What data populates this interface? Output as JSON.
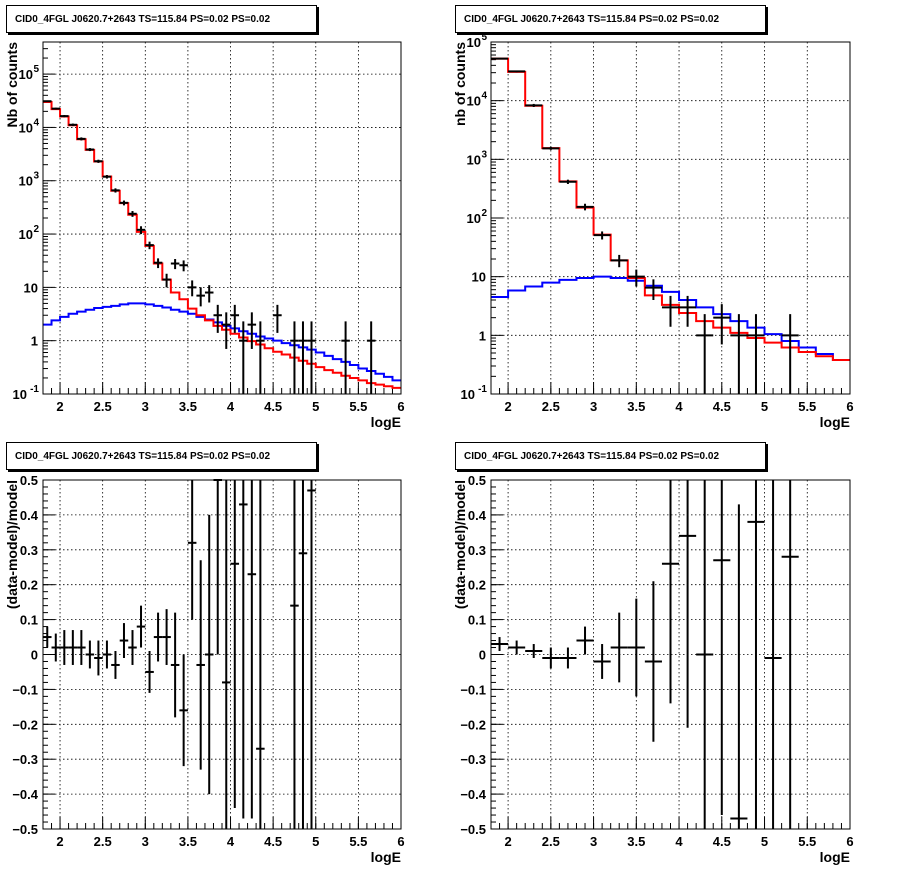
{
  "colors": {
    "data": "#000000",
    "total_model": "#ff0000",
    "source_model": "#0000ff",
    "grid": "#000000"
  },
  "chart_data": [
    {
      "id": "p1",
      "type": "histogram",
      "title": "CID0_4FGL J0620.7+2643 TS=115.84 PS=0.02 PS=0.02",
      "xlabel": "logE",
      "ylabel": "Nb of counts",
      "log_y": true,
      "grid": true,
      "xlim": [
        1.8,
        6.0
      ],
      "ylim": [
        0.1,
        400000
      ],
      "x_ticks": [
        2,
        2.5,
        3,
        3.5,
        4,
        4.5,
        5,
        5.5,
        6
      ],
      "x_tick_labels": [
        "2",
        "2.5",
        "3",
        "3.5",
        "4",
        "4.5",
        "5",
        "5.5",
        "6"
      ],
      "y_ticks": [
        0.1,
        1,
        10,
        100,
        1000,
        10000,
        100000
      ],
      "y_tick_labels": [
        [
          "10",
          "-1"
        ],
        [
          "1",
          ""
        ],
        [
          "10",
          ""
        ],
        [
          "10",
          "2"
        ],
        [
          "10",
          "3"
        ],
        [
          "10",
          "4"
        ],
        [
          "10",
          "5"
        ]
      ],
      "total_model": {
        "bin_edges": [
          1.8,
          1.9,
          2.0,
          2.1,
          2.2,
          2.3,
          2.4,
          2.5,
          2.6,
          2.7,
          2.8,
          2.9,
          3.0,
          3.1,
          3.2,
          3.3,
          3.4,
          3.5,
          3.6,
          3.7,
          3.8,
          3.9,
          4.0,
          4.1,
          4.2,
          4.3,
          4.4,
          4.5,
          4.6,
          4.7,
          4.8,
          4.9,
          5.0,
          5.1,
          5.2,
          5.3,
          5.4,
          5.5,
          5.6,
          5.7,
          5.8,
          5.9,
          6.0
        ],
        "values": [
          30000,
          22000,
          16000,
          11000,
          6000,
          3800,
          2300,
          1200,
          650,
          380,
          230,
          110,
          60,
          28,
          14,
          8.0,
          6.0,
          4.0,
          3.0,
          2.4,
          1.9,
          1.6,
          1.35,
          1.15,
          0.98,
          0.85,
          0.72,
          0.62,
          0.55,
          0.48,
          0.42,
          0.37,
          0.32,
          0.28,
          0.25,
          0.22,
          0.2,
          0.18,
          0.16,
          0.15,
          0.14,
          0.13
        ]
      },
      "source_model": {
        "bin_edges": [
          1.8,
          1.9,
          2.0,
          2.1,
          2.2,
          2.3,
          2.4,
          2.5,
          2.6,
          2.7,
          2.8,
          2.9,
          3.0,
          3.1,
          3.2,
          3.3,
          3.4,
          3.5,
          3.6,
          3.7,
          3.8,
          3.9,
          4.0,
          4.1,
          4.2,
          4.3,
          4.4,
          4.5,
          4.6,
          4.7,
          4.8,
          4.9,
          5.0,
          5.1,
          5.2,
          5.3,
          5.4,
          5.5,
          5.6,
          5.7,
          5.8,
          5.9,
          6.0
        ],
        "values": [
          2.0,
          2.4,
          2.8,
          3.2,
          3.5,
          3.8,
          4.1,
          4.3,
          4.5,
          4.8,
          5.0,
          5.0,
          4.8,
          4.5,
          4.2,
          3.8,
          3.5,
          3.2,
          2.8,
          2.5,
          2.2,
          1.9,
          1.7,
          1.5,
          1.35,
          1.2,
          1.1,
          1.0,
          0.9,
          0.82,
          0.75,
          0.68,
          0.6,
          0.52,
          0.45,
          0.4,
          0.35,
          0.3,
          0.27,
          0.24,
          0.21,
          0.18
        ]
      },
      "data_points": [
        {
          "x": 1.85,
          "y": 31000,
          "ylo": 30000,
          "yhi": 32000
        },
        {
          "x": 1.95,
          "y": 22500,
          "ylo": 21600,
          "yhi": 23400
        },
        {
          "x": 2.05,
          "y": 16300,
          "ylo": 15500,
          "yhi": 17100
        },
        {
          "x": 2.15,
          "y": 11200,
          "ylo": 10600,
          "yhi": 11800
        },
        {
          "x": 2.25,
          "y": 6100,
          "ylo": 5700,
          "yhi": 6500
        },
        {
          "x": 2.35,
          "y": 3850,
          "ylo": 3600,
          "yhi": 4100
        },
        {
          "x": 2.45,
          "y": 2320,
          "ylo": 2160,
          "yhi": 2480
        },
        {
          "x": 2.55,
          "y": 1190,
          "ylo": 1100,
          "yhi": 1280
        },
        {
          "x": 2.65,
          "y": 660,
          "ylo": 600,
          "yhi": 720
        },
        {
          "x": 2.75,
          "y": 385,
          "ylo": 345,
          "yhi": 425
        },
        {
          "x": 2.85,
          "y": 240,
          "ylo": 210,
          "yhi": 270
        },
        {
          "x": 2.95,
          "y": 120,
          "ylo": 100,
          "yhi": 140
        },
        {
          "x": 3.05,
          "y": 62,
          "ylo": 52,
          "yhi": 72
        },
        {
          "x": 3.15,
          "y": 29,
          "ylo": 23,
          "yhi": 35
        },
        {
          "x": 3.25,
          "y": 14,
          "ylo": 10,
          "yhi": 18
        },
        {
          "x": 3.35,
          "y": 28,
          "ylo": 22,
          "yhi": 34
        },
        {
          "x": 3.45,
          "y": 26,
          "ylo": 20,
          "yhi": 32
        },
        {
          "x": 3.55,
          "y": 10,
          "ylo": 6.8,
          "yhi": 13.5
        },
        {
          "x": 3.65,
          "y": 7.0,
          "ylo": 4.4,
          "yhi": 10
        },
        {
          "x": 3.75,
          "y": 8.0,
          "ylo": 5.2,
          "yhi": 11
        },
        {
          "x": 3.85,
          "y": 3.0,
          "ylo": 1.4,
          "yhi": 4.7
        },
        {
          "x": 3.95,
          "y": 2.0,
          "ylo": 0.7,
          "yhi": 3.4
        },
        {
          "x": 4.05,
          "y": 3.0,
          "ylo": 1.4,
          "yhi": 4.7
        },
        {
          "x": 4.15,
          "y": 1.0,
          "ylo": 0.1,
          "yhi": 2.3
        },
        {
          "x": 4.25,
          "y": 2.0,
          "ylo": 0.7,
          "yhi": 3.4
        },
        {
          "x": 4.35,
          "y": 1.0,
          "ylo": 0.1,
          "yhi": 2.3
        },
        {
          "x": 4.55,
          "y": 3.0,
          "ylo": 1.4,
          "yhi": 4.7
        },
        {
          "x": 4.75,
          "y": 1.0,
          "ylo": 0.1,
          "yhi": 2.3
        },
        {
          "x": 4.85,
          "y": 1.0,
          "ylo": 0.1,
          "yhi": 2.3
        },
        {
          "x": 4.95,
          "y": 1.0,
          "ylo": 0.1,
          "yhi": 2.3
        },
        {
          "x": 5.35,
          "y": 1.0,
          "ylo": 0.1,
          "yhi": 2.3
        },
        {
          "x": 5.65,
          "y": 1.0,
          "ylo": 0.1,
          "yhi": 2.3
        }
      ]
    },
    {
      "id": "p2",
      "type": "histogram",
      "title": "CID0_4FGL J0620.7+2643 TS=115.84 PS=0.02 PS=0.02",
      "xlabel": "logE",
      "ylabel": "nb of counts",
      "log_y": true,
      "grid": true,
      "xlim": [
        1.8,
        6.0
      ],
      "ylim": [
        0.1,
        100000
      ],
      "x_ticks": [
        2,
        2.5,
        3,
        3.5,
        4,
        4.5,
        5,
        5.5,
        6
      ],
      "x_tick_labels": [
        "2",
        "2.5",
        "3",
        "3.5",
        "4",
        "4.5",
        "5",
        "5.5",
        "6"
      ],
      "y_ticks": [
        0.1,
        1,
        10,
        100,
        1000,
        10000,
        100000
      ],
      "y_tick_labels": [
        [
          "10",
          "-1"
        ],
        [
          "1",
          ""
        ],
        [
          "10",
          ""
        ],
        [
          "10",
          "2"
        ],
        [
          "10",
          "3"
        ],
        [
          "10",
          "4"
        ],
        [
          "10",
          "5"
        ]
      ],
      "total_model": {
        "bin_edges": [
          1.8,
          2.0,
          2.2,
          2.4,
          2.6,
          2.8,
          3.0,
          3.2,
          3.4,
          3.6,
          3.8,
          4.0,
          4.2,
          4.4,
          4.6,
          4.8,
          5.0,
          5.2,
          5.4,
          5.6,
          5.8,
          6.0
        ],
        "values": [
          52000,
          31000,
          8200,
          1550,
          420,
          150,
          52,
          19,
          9.5,
          4.8,
          3.3,
          2.4,
          1.75,
          1.35,
          1.1,
          0.9,
          0.75,
          0.62,
          0.52,
          0.44,
          0.38
        ]
      },
      "source_model": {
        "bin_edges": [
          1.8,
          2.0,
          2.2,
          2.4,
          2.6,
          2.8,
          3.0,
          3.2,
          3.4,
          3.6,
          3.8,
          4.0,
          4.2,
          4.4,
          4.6,
          4.8,
          5.0,
          5.2,
          5.4,
          5.6,
          5.8,
          6.0
        ],
        "values": [
          4.5,
          5.8,
          6.8,
          7.9,
          8.8,
          9.5,
          10.0,
          9.5,
          8.5,
          7.0,
          5.5,
          4.0,
          3.0,
          2.3,
          1.75,
          1.35,
          1.05,
          0.8,
          0.62,
          0.48,
          0.38
        ]
      },
      "data_points": [
        {
          "x": 1.9,
          "y": 52000,
          "ylo": 50500,
          "yhi": 53500
        },
        {
          "x": 2.1,
          "y": 31500,
          "ylo": 30400,
          "yhi": 32600
        },
        {
          "x": 2.3,
          "y": 8300,
          "ylo": 7800,
          "yhi": 8800
        },
        {
          "x": 2.5,
          "y": 1540,
          "ylo": 1450,
          "yhi": 1630
        },
        {
          "x": 2.7,
          "y": 415,
          "ylo": 380,
          "yhi": 450
        },
        {
          "x": 2.9,
          "y": 155,
          "ylo": 135,
          "yhi": 175
        },
        {
          "x": 3.1,
          "y": 51,
          "ylo": 43,
          "yhi": 59
        },
        {
          "x": 3.3,
          "y": 19,
          "ylo": 14.5,
          "yhi": 23.5
        },
        {
          "x": 3.5,
          "y": 10,
          "ylo": 6.8,
          "yhi": 13.2
        },
        {
          "x": 3.7,
          "y": 6.5,
          "ylo": 4.0,
          "yhi": 9.0
        },
        {
          "x": 3.9,
          "y": 3.0,
          "ylo": 1.4,
          "yhi": 4.7
        },
        {
          "x": 4.1,
          "y": 3.0,
          "ylo": 1.4,
          "yhi": 4.7
        },
        {
          "x": 4.3,
          "y": 1.0,
          "ylo": 0.1,
          "yhi": 2.3
        },
        {
          "x": 4.5,
          "y": 2.0,
          "ylo": 0.7,
          "yhi": 3.4
        },
        {
          "x": 4.7,
          "y": 1.0,
          "ylo": 0.1,
          "yhi": 2.3
        },
        {
          "x": 4.9,
          "y": 1.0,
          "ylo": 0.1,
          "yhi": 2.3
        },
        {
          "x": 5.3,
          "y": 1.0,
          "ylo": 0.1,
          "yhi": 2.3
        }
      ]
    },
    {
      "id": "p3",
      "type": "scatter",
      "title": "CID0_4FGL J0620.7+2643 TS=115.84 PS=0.02 PS=0.02",
      "xlabel": "logE",
      "ylabel": "(data-model)/model",
      "log_y": false,
      "grid": true,
      "xlim": [
        1.8,
        6.0
      ],
      "ylim": [
        -0.5,
        0.5
      ],
      "x_ticks": [
        2,
        2.5,
        3,
        3.5,
        4,
        4.5,
        5,
        5.5,
        6
      ],
      "x_tick_labels": [
        "2",
        "2.5",
        "3",
        "3.5",
        "4",
        "4.5",
        "5",
        "5.5",
        "6"
      ],
      "y_ticks": [
        -0.5,
        -0.4,
        -0.3,
        -0.2,
        -0.1,
        0,
        0.1,
        0.2,
        0.3,
        0.4,
        0.5
      ],
      "y_tick_labels": [
        [
          "−0.5",
          ""
        ],
        [
          "−0.4",
          ""
        ],
        [
          "−0.3",
          ""
        ],
        [
          "−0.2",
          ""
        ],
        [
          "−0.1",
          ""
        ],
        [
          "0",
          ""
        ],
        [
          "0.1",
          ""
        ],
        [
          "0.2",
          ""
        ],
        [
          "0.3",
          ""
        ],
        [
          "0.4",
          ""
        ],
        [
          "0.5",
          ""
        ]
      ],
      "points": [
        {
          "x": 1.85,
          "y": 0.05,
          "err": 0.03
        },
        {
          "x": 1.95,
          "y": 0.02,
          "err": 0.04
        },
        {
          "x": 2.05,
          "y": 0.02,
          "err": 0.05
        },
        {
          "x": 2.15,
          "y": 0.02,
          "err": 0.05
        },
        {
          "x": 2.25,
          "y": 0.02,
          "err": 0.05
        },
        {
          "x": 2.35,
          "y": 0.0,
          "err": 0.04
        },
        {
          "x": 2.45,
          "y": -0.01,
          "err": 0.05
        },
        {
          "x": 2.55,
          "y": 0.0,
          "err": 0.04
        },
        {
          "x": 2.65,
          "y": -0.03,
          "err": 0.04
        },
        {
          "x": 2.75,
          "y": 0.04,
          "err": 0.05
        },
        {
          "x": 2.85,
          "y": 0.02,
          "err": 0.05
        },
        {
          "x": 2.95,
          "y": 0.08,
          "err": 0.06
        },
        {
          "x": 3.05,
          "y": -0.05,
          "err": 0.06
        },
        {
          "x": 3.15,
          "y": 0.05,
          "err": 0.07
        },
        {
          "x": 3.25,
          "y": 0.05,
          "err": 0.08
        },
        {
          "x": 3.35,
          "y": -0.03,
          "err": 0.15
        },
        {
          "x": 3.45,
          "y": -0.16,
          "err": 0.16
        },
        {
          "x": 3.55,
          "y": 0.32,
          "err": 0.22
        },
        {
          "x": 3.65,
          "y": -0.03,
          "err": 0.3
        },
        {
          "x": 3.75,
          "y": 0.0,
          "err": 0.4
        },
        {
          "x": 3.85,
          "y": 0.5,
          "err": 0.5
        },
        {
          "x": 3.95,
          "y": -0.08,
          "err": 0.6
        },
        {
          "x": 4.05,
          "y": 0.26,
          "err": 0.7
        },
        {
          "x": 4.15,
          "y": 0.43,
          "err": 0.9
        },
        {
          "x": 4.25,
          "y": 0.23,
          "err": 0.7
        },
        {
          "x": 4.35,
          "y": -0.27,
          "err": 0.9
        },
        {
          "x": 4.75,
          "y": 0.14,
          "err": 0.9
        },
        {
          "x": 4.85,
          "y": 0.29,
          "err": 0.9
        },
        {
          "x": 4.95,
          "y": 0.47,
          "err": 1.0
        }
      ]
    },
    {
      "id": "p4",
      "type": "scatter",
      "title": "CID0_4FGL J0620.7+2643 TS=115.84 PS=0.02 PS=0.02",
      "xlabel": "logE",
      "ylabel": "(data-model)/model",
      "log_y": false,
      "grid": true,
      "xlim": [
        1.8,
        6.0
      ],
      "ylim": [
        -0.5,
        0.5
      ],
      "x_ticks": [
        2,
        2.5,
        3,
        3.5,
        4,
        4.5,
        5,
        5.5,
        6
      ],
      "x_tick_labels": [
        "2",
        "2.5",
        "3",
        "3.5",
        "4",
        "4.5",
        "5",
        "5.5",
        "6"
      ],
      "y_ticks": [
        -0.5,
        -0.4,
        -0.3,
        -0.2,
        -0.1,
        0,
        0.1,
        0.2,
        0.3,
        0.4,
        0.5
      ],
      "y_tick_labels": [
        [
          "−0.5",
          ""
        ],
        [
          "−0.4",
          ""
        ],
        [
          "−0.3",
          ""
        ],
        [
          "−0.2",
          ""
        ],
        [
          "−0.1",
          ""
        ],
        [
          "0",
          ""
        ],
        [
          "0.1",
          ""
        ],
        [
          "0.2",
          ""
        ],
        [
          "0.3",
          ""
        ],
        [
          "0.4",
          ""
        ],
        [
          "0.5",
          ""
        ]
      ],
      "points": [
        {
          "x": 1.9,
          "y": 0.03,
          "err": 0.02
        },
        {
          "x": 2.1,
          "y": 0.02,
          "err": 0.02
        },
        {
          "x": 2.3,
          "y": 0.01,
          "err": 0.02
        },
        {
          "x": 2.5,
          "y": -0.01,
          "err": 0.03
        },
        {
          "x": 2.7,
          "y": -0.01,
          "err": 0.03
        },
        {
          "x": 2.9,
          "y": 0.04,
          "err": 0.04
        },
        {
          "x": 3.1,
          "y": -0.02,
          "err": 0.05
        },
        {
          "x": 3.3,
          "y": 0.02,
          "err": 0.1
        },
        {
          "x": 3.5,
          "y": 0.02,
          "err": 0.14
        },
        {
          "x": 3.7,
          "y": -0.02,
          "err": 0.23
        },
        {
          "x": 3.9,
          "y": 0.26,
          "err": 0.4
        },
        {
          "x": 4.1,
          "y": 0.34,
          "err": 0.55
        },
        {
          "x": 4.3,
          "y": 0.0,
          "err": 0.9
        },
        {
          "x": 4.5,
          "y": 0.27,
          "err": 0.73
        },
        {
          "x": 4.7,
          "y": -0.47,
          "err": 0.9
        },
        {
          "x": 4.9,
          "y": 0.38,
          "err": 0.9
        },
        {
          "x": 5.1,
          "y": -0.01,
          "err": 0.9
        },
        {
          "x": 5.3,
          "y": 0.28,
          "err": 0.9
        }
      ]
    }
  ]
}
